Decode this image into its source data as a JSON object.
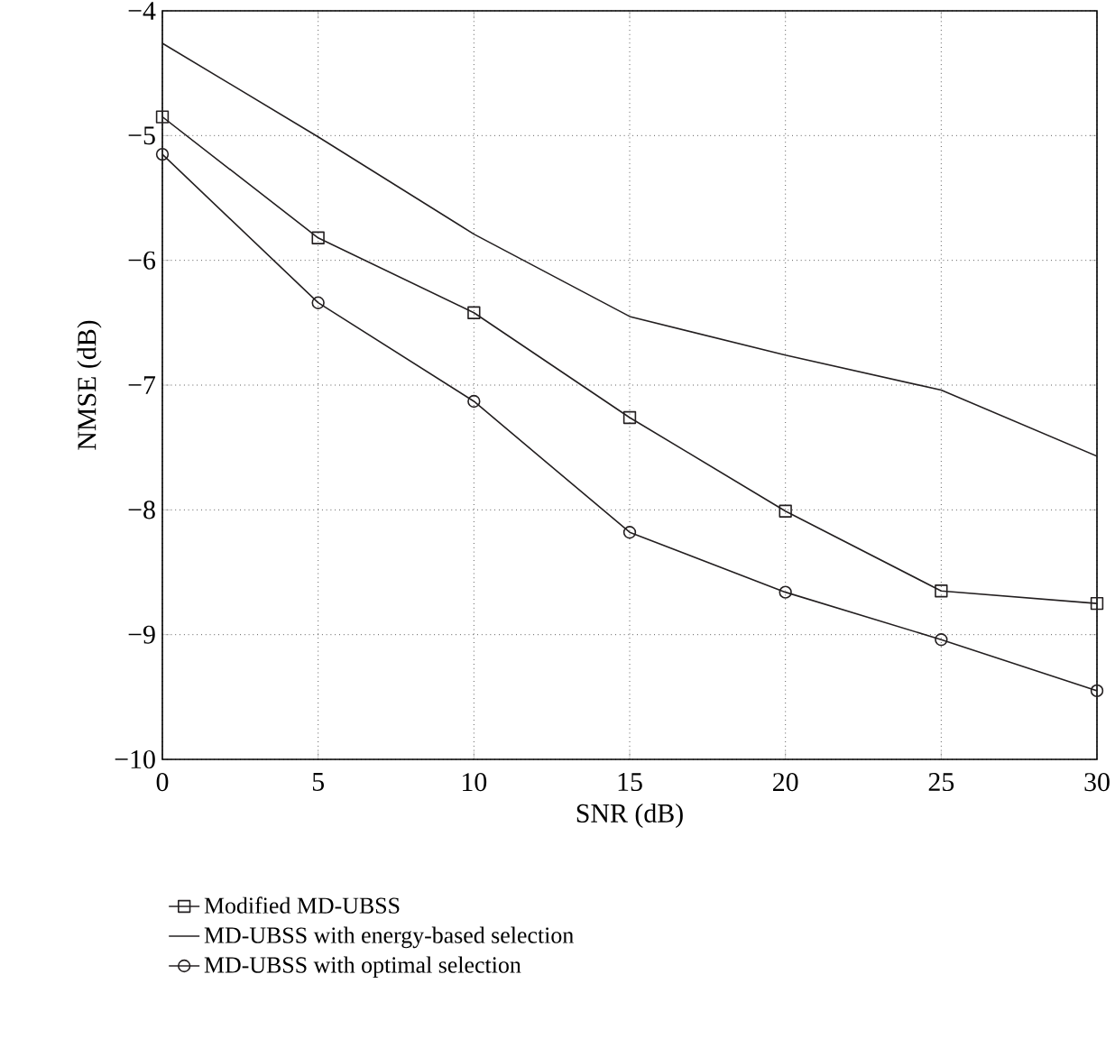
{
  "chart_data": {
    "type": "line",
    "xlabel": "SNR (dB)",
    "ylabel": "NMSE (dB)",
    "x": [
      0,
      5,
      10,
      15,
      20,
      25,
      30
    ],
    "xlim": [
      0,
      30
    ],
    "xticks": [
      0,
      5,
      10,
      15,
      20,
      25,
      30
    ],
    "ylim": [
      -10,
      -4
    ],
    "yticks": [
      {
        "value": -10,
        "label": "−10"
      },
      {
        "value": -9,
        "label": "−9"
      },
      {
        "value": -8,
        "label": "−8"
      },
      {
        "value": -7,
        "label": "−7"
      },
      {
        "value": -6,
        "label": "−6"
      },
      {
        "value": -5,
        "label": "−5"
      },
      {
        "value": -4,
        "label": "−4"
      }
    ],
    "grid": true,
    "legend": "bottom",
    "line_style": "solid",
    "series": [
      {
        "name": "Modified MD-UBSS",
        "color": "#231f20",
        "marker": "square",
        "values": [
          -4.85,
          -5.82,
          -6.42,
          -7.26,
          -8.01,
          -8.65,
          -8.75
        ]
      },
      {
        "name": "MD-UBSS with energy-based selection",
        "color": "#231f20",
        "marker": "none",
        "values": [
          -4.26,
          -5.01,
          -5.79,
          -6.45,
          -6.76,
          -7.04,
          -7.57
        ]
      },
      {
        "name": "MD-UBSS with optimal selection",
        "color": "#231f20",
        "marker": "circle",
        "values": [
          -5.15,
          -6.34,
          -7.13,
          -8.18,
          -8.66,
          -9.04,
          -9.45
        ]
      }
    ]
  }
}
